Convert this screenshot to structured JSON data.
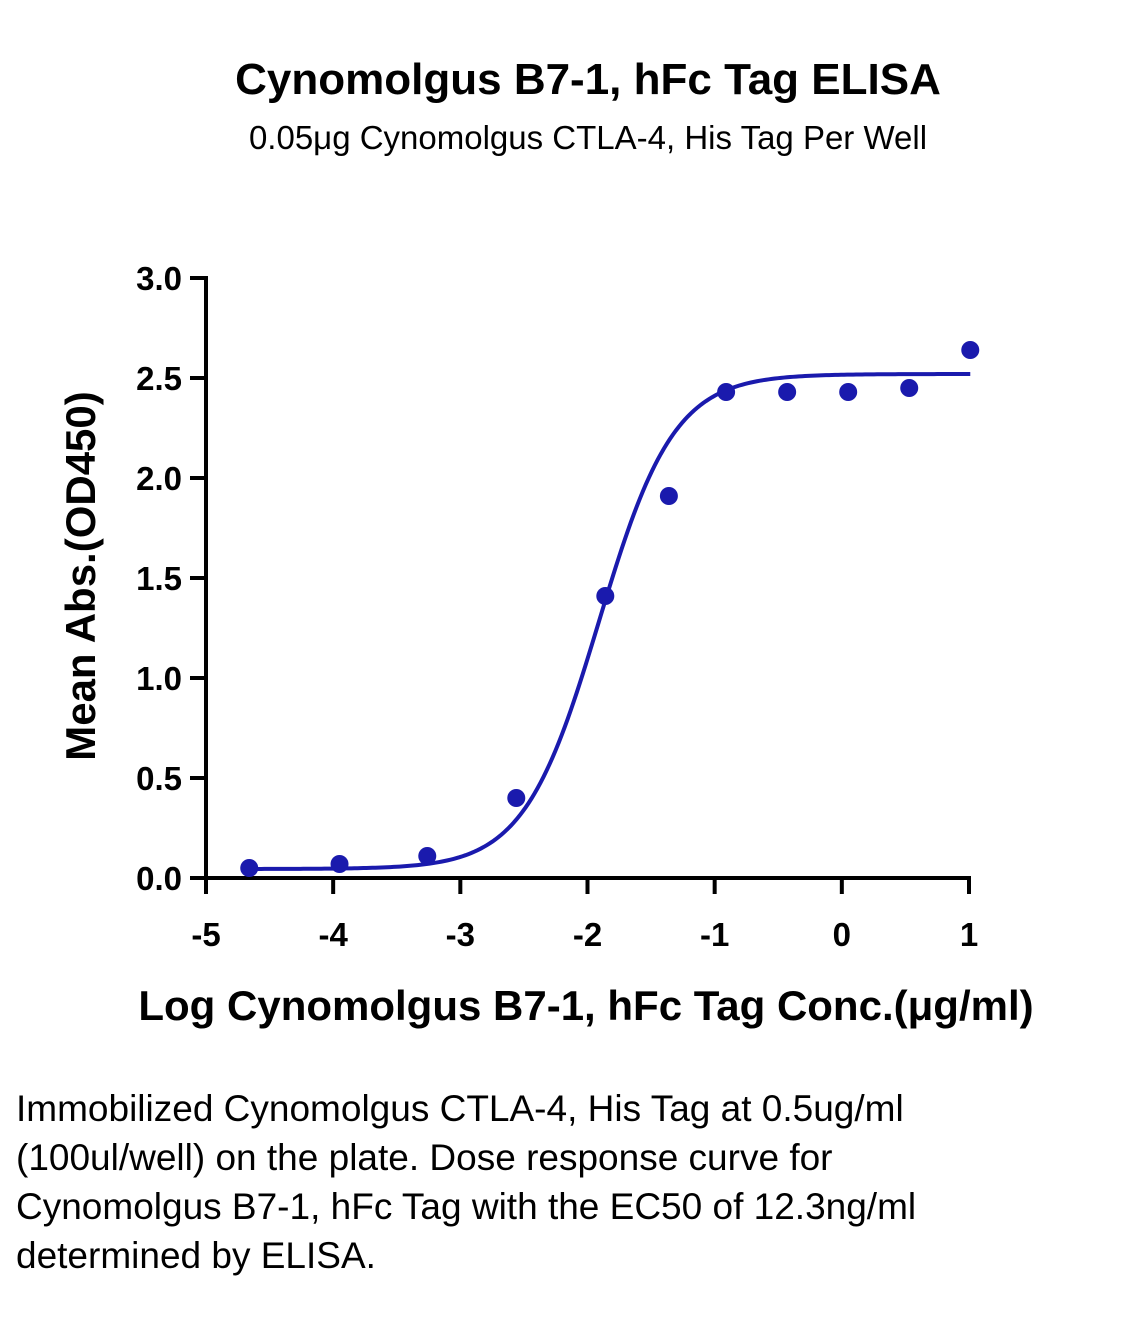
{
  "chart_data": {
    "type": "scatter",
    "title": "Cynomolgus B7-1, hFc Tag ELISA",
    "subtitle": "0.05μg Cynomolgus CTLA-4, His Tag Per Well",
    "xlabel": "Log Cynomolgus B7-1, hFc Tag Conc.(μg/ml)",
    "ylabel": "Mean Abs.(OD450)",
    "xlim": [
      -5,
      1
    ],
    "ylim": [
      0,
      3.0
    ],
    "x_ticks": [
      -5,
      -4,
      -3,
      -2,
      -1,
      0,
      1
    ],
    "x_tick_labels": [
      "-5",
      "-4",
      "-3",
      "-2",
      "-1",
      "0",
      "1"
    ],
    "y_ticks": [
      0,
      0.5,
      1.0,
      1.5,
      2.0,
      2.5,
      3.0
    ],
    "y_tick_labels": [
      "0.0",
      "0.5",
      "1.0",
      "1.5",
      "2.0",
      "2.5",
      "3.0"
    ],
    "series": [
      {
        "x": [
          -4.66,
          -3.95,
          -3.26,
          -2.56,
          -1.86,
          -1.36,
          -0.91,
          -0.43,
          0.05,
          0.53,
          1.01
        ],
        "y": [
          0.05,
          0.07,
          0.11,
          0.4,
          1.41,
          1.91,
          2.43,
          2.43,
          2.43,
          2.45,
          2.64
        ]
      }
    ],
    "fit": {
      "bottom": 0.045,
      "top": 2.52,
      "log_ec50": -1.91,
      "hill_slope": 1.47
    },
    "colors": {
      "series": "#1a1aad",
      "axis": "#000000"
    },
    "grid": false,
    "legend": "none"
  },
  "caption": "Immobilized Cynomolgus CTLA-4, His Tag at 0.5ug/ml (100ul/well) on the plate. Dose response curve for Cynomolgus B7-1, hFc Tag with the EC50 of 12.3ng/ml determined by ELISA."
}
